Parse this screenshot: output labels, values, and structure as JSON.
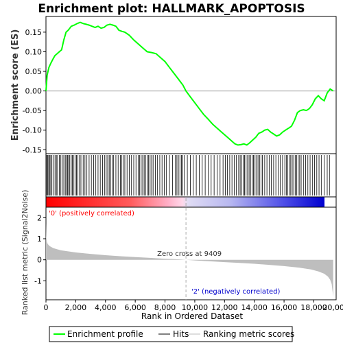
{
  "chart_data": {
    "type": "line",
    "title": "Enrichment plot: HALLMARK_APOPTOSIS",
    "top_panel": {
      "ylabel": "Enrichment score (ES)",
      "ylim": [
        -0.16,
        0.19
      ],
      "yticks": [
        "-0.15",
        "-0.10",
        "-0.05",
        "0.00",
        "0.05",
        "0.10",
        "0.15"
      ],
      "ytick_values": [
        -0.15,
        -0.1,
        -0.05,
        0.0,
        0.05,
        0.1,
        0.15
      ],
      "series": [
        {
          "name": "Enrichment profile",
          "color": "#00ff00",
          "x": [
            0,
            80,
            200,
            320,
            450,
            600,
            750,
            900,
            1050,
            1200,
            1350,
            1500,
            1700,
            1900,
            2100,
            2300,
            2500,
            2700,
            2900,
            3100,
            3300,
            3500,
            3700,
            3900,
            4100,
            4300,
            4500,
            4700,
            4900,
            5100,
            5300,
            5600,
            5900,
            6200,
            6500,
            6800,
            7100,
            7400,
            7700,
            8000,
            8300,
            8600,
            8900,
            9200,
            9409,
            9700,
            10000,
            10300,
            10600,
            10900,
            11200,
            11500,
            11800,
            12100,
            12400,
            12700,
            12900,
            13100,
            13300,
            13500,
            13700,
            13900,
            14100,
            14300,
            14500,
            14700,
            14900,
            15100,
            15300,
            15500,
            15700,
            15900,
            16100,
            16300,
            16500,
            16700,
            16900,
            17100,
            17300,
            17500,
            17700,
            17900,
            18100,
            18300,
            18500,
            18700,
            18900,
            19100,
            19300
          ],
          "y": [
            0.0,
            0.04,
            0.06,
            0.07,
            0.08,
            0.09,
            0.095,
            0.1,
            0.105,
            0.13,
            0.15,
            0.155,
            0.165,
            0.168,
            0.172,
            0.175,
            0.172,
            0.17,
            0.168,
            0.165,
            0.162,
            0.165,
            0.16,
            0.162,
            0.168,
            0.17,
            0.168,
            0.165,
            0.155,
            0.152,
            0.15,
            0.142,
            0.13,
            0.12,
            0.11,
            0.1,
            0.098,
            0.095,
            0.085,
            0.075,
            0.06,
            0.045,
            0.03,
            0.015,
            0.0,
            -0.015,
            -0.03,
            -0.045,
            -0.06,
            -0.072,
            -0.085,
            -0.095,
            -0.105,
            -0.115,
            -0.125,
            -0.135,
            -0.138,
            -0.137,
            -0.135,
            -0.138,
            -0.132,
            -0.125,
            -0.118,
            -0.108,
            -0.105,
            -0.1,
            -0.098,
            -0.105,
            -0.11,
            -0.115,
            -0.112,
            -0.105,
            -0.1,
            -0.095,
            -0.09,
            -0.075,
            -0.055,
            -0.05,
            -0.048,
            -0.05,
            -0.045,
            -0.035,
            -0.02,
            -0.012,
            -0.02,
            -0.025,
            -0.005,
            0.005,
            0.0
          ]
        }
      ],
      "zero_line": 0.0
    },
    "hits_panel": {
      "name": "Hits",
      "positions": [
        50,
        110,
        180,
        250,
        320,
        400,
        520,
        610,
        700,
        780,
        900,
        1000,
        1100,
        1200,
        1300,
        1380,
        1450,
        1520,
        1600,
        1700,
        1780,
        1850,
        1950,
        2050,
        2150,
        2250,
        2350,
        2500,
        2620,
        2750,
        2900,
        3050,
        3200,
        3350,
        3500,
        3650,
        3800,
        3950,
        4050,
        4150,
        4250,
        4350,
        4450,
        4550,
        4700,
        4850,
        5000,
        5100,
        5200,
        5300,
        5450,
        5600,
        5750,
        5900,
        6050,
        6200,
        6300,
        6400,
        6500,
        6600,
        6700,
        6800,
        6900,
        7000,
        7100,
        7200,
        7350,
        7500,
        7650,
        7800,
        7950,
        8100,
        8300,
        8500,
        8700,
        8800,
        8900,
        9000,
        9100,
        9200,
        9300,
        9500,
        9700,
        9900,
        10100,
        10300,
        10500,
        10700,
        10900,
        11100,
        11300,
        11500,
        11700,
        11900,
        12050,
        12200,
        12350,
        12500,
        12650,
        12800,
        12950,
        13050,
        13150,
        13250,
        13350,
        13450,
        13550,
        13650,
        13750,
        13850,
        13950,
        14050,
        14150,
        14250,
        14350,
        14450,
        14550,
        14700,
        14850,
        15000,
        15150,
        15300,
        15450,
        15600,
        15750,
        15900,
        16050,
        16150,
        16250,
        16350,
        16450,
        16550,
        16650,
        16750,
        16850,
        16950,
        17050,
        17150,
        17300,
        17450,
        17600,
        17750,
        17900,
        18050,
        18200,
        18350,
        18500,
        18700,
        18900,
        19050
      ]
    },
    "ranking_panel": {
      "ylabel": "Ranked list metric (Signal2Noise)",
      "ylim": [
        -1.9,
        2.5
      ],
      "yticks": [
        "2",
        "1",
        "0",
        "-1"
      ],
      "ytick_values": [
        2,
        1,
        0,
        -1
      ],
      "legend_name": "Ranking metric scores",
      "zero_cross_label": "Zero cross at 9409",
      "zero_cross": 9409,
      "positive_label": "'0' (positively correlated)",
      "negative_label": "'2' (negatively correlated)",
      "x": [
        0,
        20,
        60,
        120,
        250,
        500,
        1000,
        2000,
        3000,
        4000,
        5000,
        6000,
        7000,
        8000,
        9000,
        9409,
        10000,
        11000,
        12000,
        13000,
        14000,
        15000,
        16000,
        17000,
        17800,
        18300,
        18700,
        18950,
        19100,
        19200,
        19260,
        19300
      ],
      "y": [
        1.75,
        1.1,
        0.85,
        0.75,
        0.65,
        0.55,
        0.45,
        0.35,
        0.28,
        0.22,
        0.17,
        0.13,
        0.09,
        0.05,
        0.02,
        0.0,
        -0.03,
        -0.07,
        -0.11,
        -0.15,
        -0.19,
        -0.24,
        -0.3,
        -0.37,
        -0.46,
        -0.55,
        -0.66,
        -0.8,
        -0.95,
        -1.15,
        -1.5,
        -1.75
      ]
    },
    "xlabel": "Rank in Ordered Dataset",
    "xlim": [
      0,
      19500
    ],
    "xticks": [
      "0",
      "2,000",
      "4,000",
      "6,000",
      "8,000",
      "10,000",
      "12,000",
      "14,000",
      "16,000",
      "18,000",
      "20,000"
    ],
    "xtick_values": [
      0,
      2000,
      4000,
      6000,
      8000,
      10000,
      12000,
      14000,
      16000,
      18000,
      20000
    ],
    "legend": {
      "placement": "bottom",
      "entries": [
        "Enrichment profile",
        "Hits",
        "Ranking metric scores"
      ]
    },
    "colors": {
      "profile": "#00ff00",
      "hits": "#000000",
      "ranking_fill": "#bebebe",
      "positive": "#ff0000",
      "negative": "#0000ff",
      "positive_label": "#ff0000",
      "negative_label": "#0000cc"
    }
  }
}
